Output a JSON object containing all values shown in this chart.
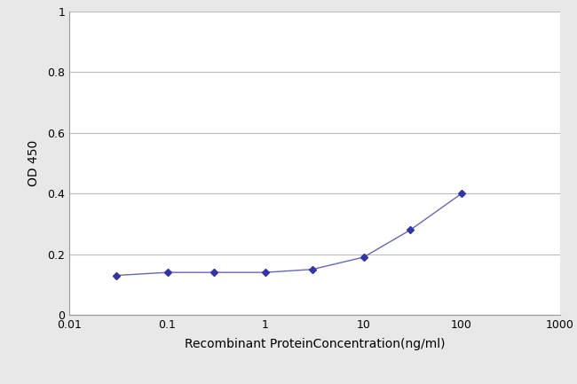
{
  "x_values": [
    0.03,
    0.1,
    0.3,
    1,
    3,
    10,
    30,
    100
  ],
  "y_values": [
    0.13,
    0.14,
    0.14,
    0.14,
    0.15,
    0.19,
    0.28,
    0.4
  ],
  "line_color": "#6666bb",
  "marker": "D",
  "marker_size": 4,
  "marker_facecolor": "#3333aa",
  "xlabel": "Recombinant ProteinConcentration(ng/ml)",
  "ylabel": "OD 450",
  "xlim": [
    0.01,
    1000
  ],
  "ylim": [
    0,
    1
  ],
  "yticks": [
    0,
    0.2,
    0.4,
    0.6,
    0.8,
    1
  ],
  "xtick_positions": [
    0.01,
    0.1,
    1,
    10,
    100,
    1000
  ],
  "xtick_labels": [
    "0.01",
    "0.1",
    "1",
    "10",
    "100",
    "1000"
  ],
  "background_color": "#e8e8e8",
  "plot_bg_color": "#ffffff",
  "grid_color": "#bbbbbb",
  "xlabel_fontsize": 10,
  "ylabel_fontsize": 10,
  "tick_fontsize": 9,
  "linestyle": "-",
  "linewidth": 1.0
}
